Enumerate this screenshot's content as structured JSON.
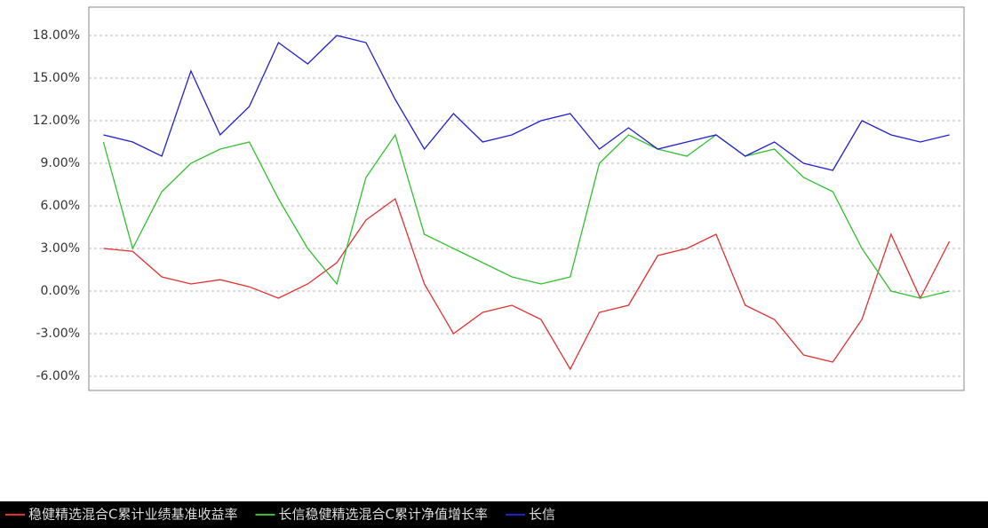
{
  "chart_data": {
    "type": "line",
    "categories": [
      null,
      null,
      null,
      null,
      null,
      null,
      null,
      null,
      null,
      null,
      null,
      null,
      null,
      null,
      null,
      null,
      null,
      null,
      null,
      null,
      null,
      null,
      null,
      null,
      null,
      null,
      null,
      null,
      null,
      null
    ],
    "series": [
      {
        "name": "稳健精选混合C累计业绩基准收益率",
        "color": "#e03030",
        "values": [
          3.0,
          2.8,
          1.0,
          0.5,
          0.8,
          0.3,
          -0.5,
          0.5,
          2.0,
          5.0,
          6.5,
          0.5,
          -3.0,
          -1.5,
          -1.0,
          -2.0,
          -5.5,
          -1.5,
          -1.0,
          2.5,
          3.0,
          4.0,
          -1.0,
          -2.0,
          -4.5,
          -5.0,
          -2.0,
          4.0,
          -0.5,
          3.5
        ]
      },
      {
        "name": "长信稳健精选混合C累计净值增长率",
        "color": "#30c030",
        "values": [
          10.5,
          3.0,
          7.0,
          9.0,
          10.0,
          10.5,
          6.5,
          3.0,
          0.5,
          8.0,
          11.0,
          4.0,
          3.0,
          2.0,
          1.0,
          0.5,
          1.0,
          9.0,
          11.0,
          10.0,
          9.5,
          11.0,
          9.5,
          10.0,
          8.0,
          7.0,
          3.0,
          0.0,
          -0.5,
          0.0
        ]
      },
      {
        "name": "长信",
        "color": "#2020d0",
        "values": [
          11.0,
          10.5,
          9.5,
          15.5,
          11.0,
          13.0,
          17.5,
          16.0,
          18.0,
          17.5,
          13.5,
          10.0,
          12.5,
          10.5,
          11.0,
          12.0,
          12.5,
          10.0,
          11.5,
          10.0,
          10.5,
          11.0,
          9.5,
          10.5,
          9.0,
          8.5,
          12.0,
          11.0,
          10.5,
          11.0
        ]
      }
    ],
    "ylim": [
      -7,
      20
    ],
    "yticks": [
      {
        "value": 18,
        "label": "18.00%"
      },
      {
        "value": 15,
        "label": "15.00%"
      },
      {
        "value": 12,
        "label": "12.00%"
      },
      {
        "value": 9,
        "label": "9.00%"
      },
      {
        "value": 6,
        "label": "6.00%"
      },
      {
        "value": 3,
        "label": "3.00%"
      },
      {
        "value": 0,
        "label": "0.00%"
      },
      {
        "value": -3,
        "label": "-3.00%"
      },
      {
        "value": -6,
        "label": "-6.00%"
      }
    ],
    "grid": true
  }
}
